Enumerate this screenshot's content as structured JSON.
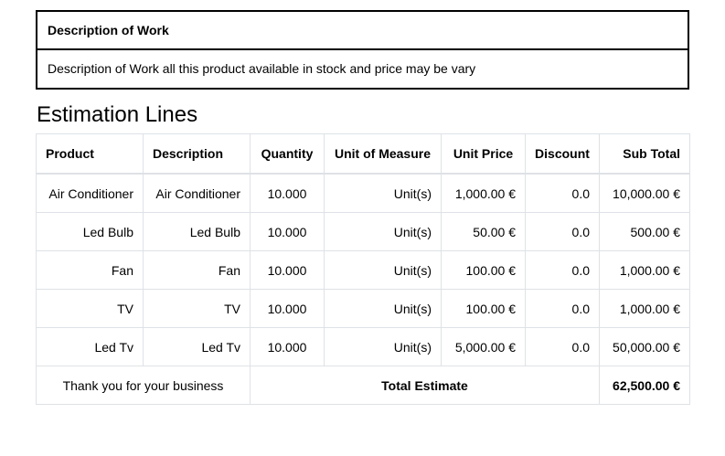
{
  "work": {
    "header": "Description of Work",
    "body": "Description of Work all this product available in stock and price may be vary"
  },
  "section_title": "Estimation Lines",
  "table": {
    "columns": [
      "Product",
      "Description",
      "Quantity",
      "Unit of Measure",
      "Unit Price",
      "Discount",
      "Sub Total"
    ],
    "rows": [
      {
        "product": "Air Conditioner",
        "description": "Air Conditioner",
        "quantity": "10.000",
        "uom": "Unit(s)",
        "unit_price": "1,000.00 €",
        "discount": "0.0",
        "subtotal": "10,000.00 €"
      },
      {
        "product": "Led Bulb",
        "description": "Led Bulb",
        "quantity": "10.000",
        "uom": "Unit(s)",
        "unit_price": "50.00 €",
        "discount": "0.0",
        "subtotal": "500.00 €"
      },
      {
        "product": "Fan",
        "description": "Fan",
        "quantity": "10.000",
        "uom": "Unit(s)",
        "unit_price": "100.00 €",
        "discount": "0.0",
        "subtotal": "1,000.00 €"
      },
      {
        "product": "TV",
        "description": "TV",
        "quantity": "10.000",
        "uom": "Unit(s)",
        "unit_price": "100.00 €",
        "discount": "0.0",
        "subtotal": "1,000.00 €"
      },
      {
        "product": "Led Tv",
        "description": "Led Tv",
        "quantity": "10.000",
        "uom": "Unit(s)",
        "unit_price": "5,000.00 €",
        "discount": "0.0",
        "subtotal": "50,000.00 €"
      }
    ],
    "footer": {
      "thanks": "Thank you for your business",
      "total_label": "Total Estimate",
      "total_value": "62,500.00 €"
    }
  }
}
